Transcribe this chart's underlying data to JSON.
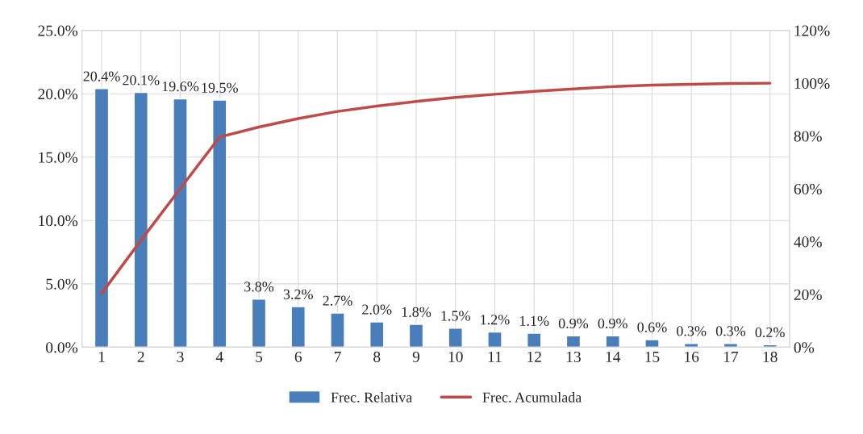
{
  "chart_data": {
    "type": "bar",
    "categories": [
      "1",
      "2",
      "3",
      "4",
      "5",
      "6",
      "7",
      "8",
      "9",
      "10",
      "11",
      "12",
      "13",
      "14",
      "15",
      "16",
      "17",
      "18"
    ],
    "series": [
      {
        "name": "Frec. Relativa",
        "color": "#4a7ebb",
        "values": [
          20.4,
          20.1,
          19.6,
          19.5,
          3.8,
          3.2,
          2.7,
          2.0,
          1.8,
          1.5,
          1.2,
          1.1,
          0.9,
          0.9,
          0.6,
          0.3,
          0.3,
          0.2
        ],
        "value_labels": [
          "20.4%",
          "20.1%",
          "19.6%",
          "19.5%",
          "3.8%",
          "3.2%",
          "2.7%",
          "2.0%",
          "1.8%",
          "1.5%",
          "1.2%",
          "1.1%",
          "0.9%",
          "0.9%",
          "0.6%",
          "0.3%",
          "0.3%",
          "0.2%"
        ]
      },
      {
        "name": "Frec. Acumulada",
        "type": "line",
        "axis": "y2",
        "color": "#be4b48",
        "values": [
          20.4,
          40.5,
          60.1,
          79.6,
          83.4,
          86.6,
          89.3,
          91.3,
          93.1,
          94.6,
          95.8,
          96.9,
          97.8,
          98.7,
          99.3,
          99.6,
          99.9,
          100
        ]
      }
    ],
    "ylim": [
      0,
      25
    ],
    "yticks": [
      {
        "value": 0,
        "label": "0.0%"
      },
      {
        "value": 5,
        "label": "5.0%"
      },
      {
        "value": 10,
        "label": "10.0%"
      },
      {
        "value": 15,
        "label": "15.0%"
      },
      {
        "value": 20,
        "label": "20.0%"
      },
      {
        "value": 25,
        "label": "25.0%"
      }
    ],
    "y2lim": [
      0,
      120
    ],
    "y2ticks": [
      {
        "value": 0,
        "label": "0%"
      },
      {
        "value": 20,
        "label": "20%"
      },
      {
        "value": 40,
        "label": "40%"
      },
      {
        "value": 60,
        "label": "60%"
      },
      {
        "value": 80,
        "label": "80%"
      },
      {
        "value": 100,
        "label": "100%"
      },
      {
        "value": 120,
        "label": "120%"
      }
    ],
    "grid": true,
    "legend": "bottom",
    "marker": "none",
    "line_style": "solid"
  }
}
